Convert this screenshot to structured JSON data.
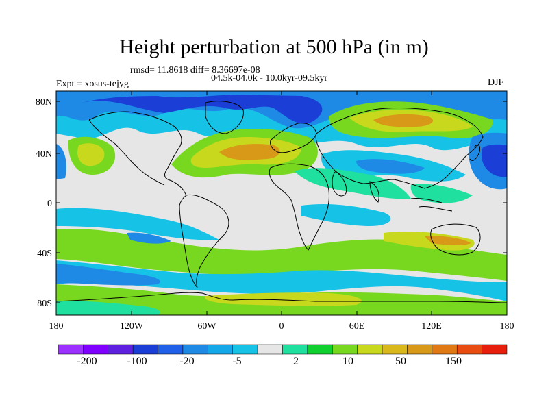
{
  "title": "Height perturbation at 500 hPa (in m)",
  "stats_line": "rmsd= 11.8618 diff= 8.36697e-08",
  "period_line": "04.5k-04.0k - 10.0kyr-09.5kyr",
  "expt_label": "Expt = xosus-tejyg",
  "season": "DJF",
  "lat_labels": [
    "80N",
    "40N",
    "0",
    "40S",
    "80S"
  ],
  "lon_labels": [
    "180",
    "120W",
    "60W",
    "0",
    "60E",
    "120E",
    "180"
  ],
  "colorbar": {
    "colors": [
      "#9b30ff",
      "#7f00ff",
      "#6020e0",
      "#1a3ed6",
      "#2060e8",
      "#1e8ae6",
      "#14a8e8",
      "#16c2e6",
      "#e6e6e6",
      "#20e0a0",
      "#10d030",
      "#78d820",
      "#c8d81c",
      "#d8b81a",
      "#d89818",
      "#e07814",
      "#e84c10",
      "#e81e0c"
    ],
    "labels": [
      "-200",
      "-100",
      "-20",
      "-5",
      "2",
      "10",
      "50",
      "150"
    ]
  },
  "palette": {
    "land_outline": "#000000",
    "neutral": "#e6e6e6",
    "light_blue": "#16c2e6",
    "mid_blue": "#1e8ae6",
    "dark_blue": "#1a3ed6",
    "light_green": "#20e0a0",
    "green": "#78d820",
    "yellow": "#c8d81c",
    "orange": "#d89818"
  }
}
